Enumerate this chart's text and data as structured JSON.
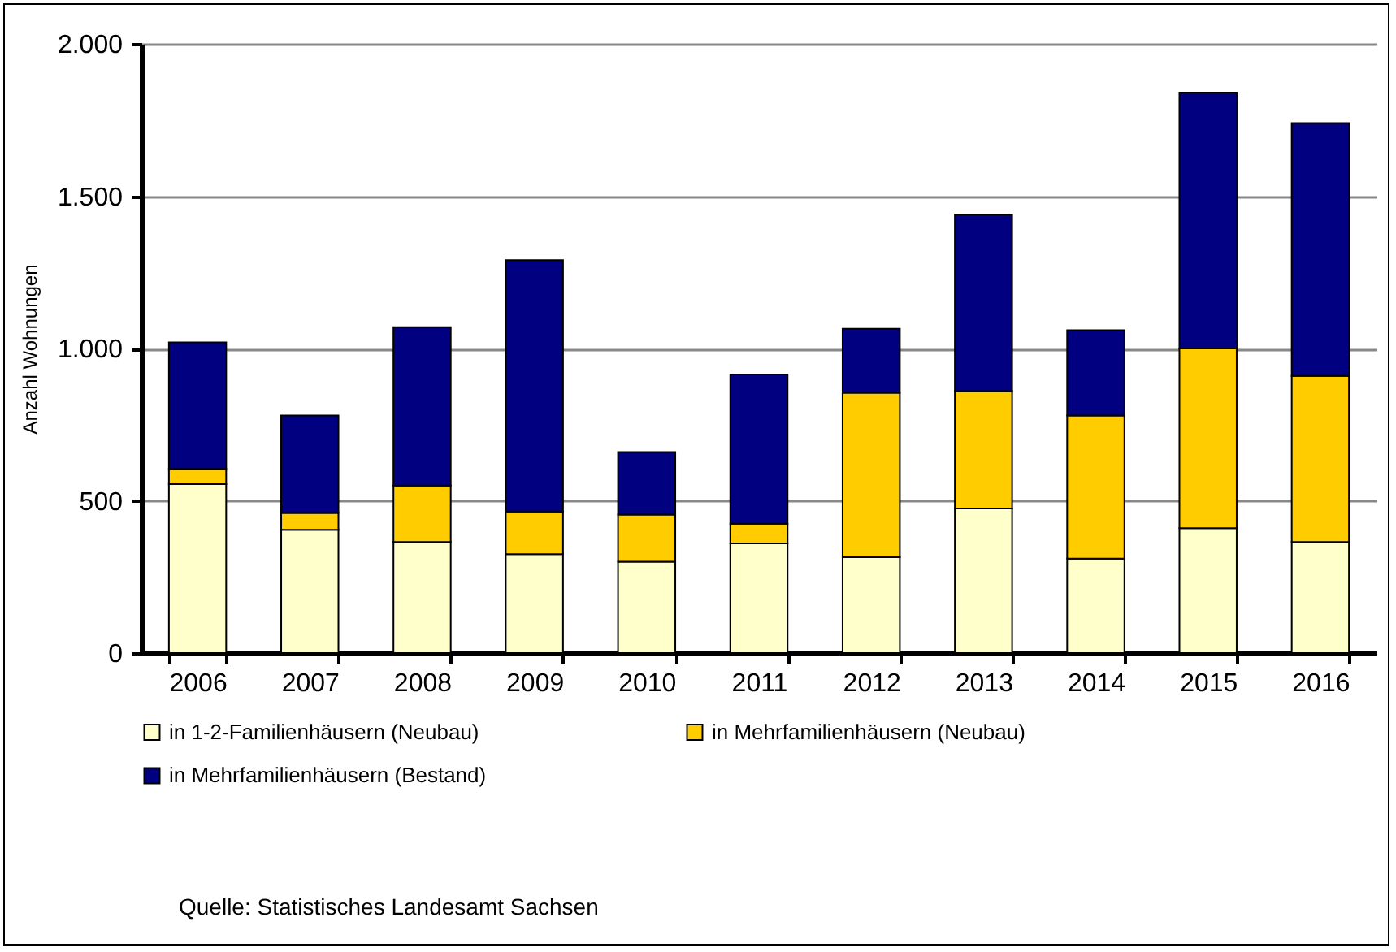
{
  "chart_data": {
    "type": "bar",
    "stacked": true,
    "ylabel": "Anzahl Wohnungen",
    "categories": [
      "2006",
      "2007",
      "2008",
      "2009",
      "2010",
      "2011",
      "2012",
      "2013",
      "2014",
      "2015",
      "2016"
    ],
    "series": [
      {
        "name": "in 1-2-Familienhäusern (Neubau)",
        "color": "#ffffcc",
        "values": [
          555,
          405,
          365,
          325,
          300,
          360,
          315,
          475,
          310,
          410,
          365
        ]
      },
      {
        "name": "in Mehrfamilienhäusern (Neubau)",
        "color": "#ffcc00",
        "values": [
          50,
          55,
          185,
          140,
          155,
          65,
          540,
          385,
          470,
          590,
          545
        ]
      },
      {
        "name": "in Mehrfamilienhäusern (Bestand)",
        "color": "#000080",
        "values": [
          415,
          320,
          520,
          825,
          205,
          490,
          210,
          580,
          280,
          840,
          830
        ]
      }
    ],
    "ylim": [
      0,
      2000
    ],
    "yticks": [
      0,
      {
        "value": 500,
        "label": "500"
      },
      {
        "value": 1000,
        "label": "1.000"
      },
      {
        "value": 1500,
        "label": "1.500"
      },
      {
        "value": 2000,
        "label": "2.000"
      }
    ],
    "grid": "y",
    "legend": "bottom",
    "annotations": [
      "Quelle: Statistisches Landesamt Sachsen"
    ]
  }
}
